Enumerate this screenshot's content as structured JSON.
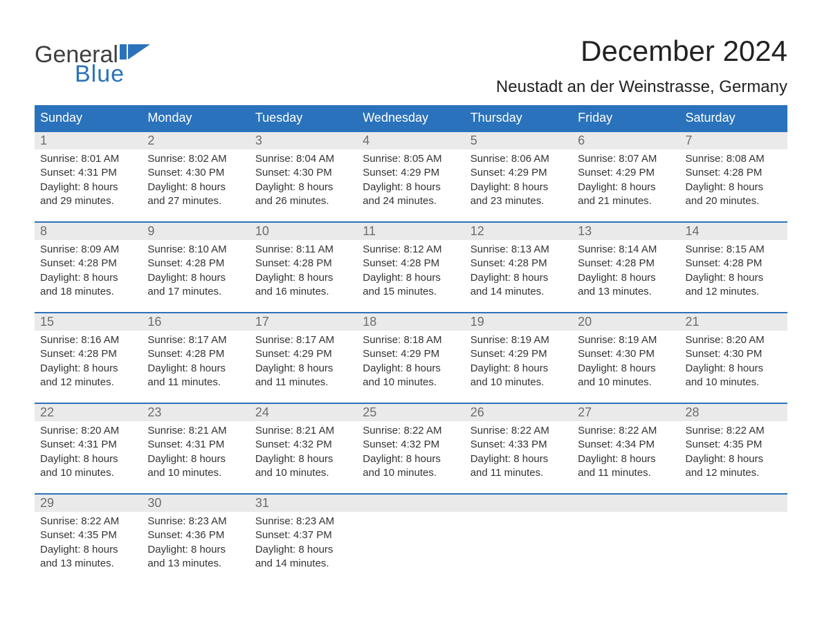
{
  "logo": {
    "text1": "General",
    "text2": "Blue"
  },
  "title": "December 2024",
  "location": "Neustadt an der Weinstrasse, Germany",
  "colors": {
    "header_bg": "#2a72bb",
    "header_text": "#ffffff",
    "daynum_bg": "#eaeaea",
    "daynum_text": "#6d6d6d",
    "body_text": "#333333",
    "week_border": "#2a72bb",
    "logo_gray": "#3f3f3f",
    "logo_blue": "#2a72bb",
    "background": "#ffffff"
  },
  "weekdays": [
    "Sunday",
    "Monday",
    "Tuesday",
    "Wednesday",
    "Thursday",
    "Friday",
    "Saturday"
  ],
  "weeks": [
    [
      {
        "n": "1",
        "sunrise": "8:01 AM",
        "sunset": "4:31 PM",
        "daylight": "8 hours and 29 minutes."
      },
      {
        "n": "2",
        "sunrise": "8:02 AM",
        "sunset": "4:30 PM",
        "daylight": "8 hours and 27 minutes."
      },
      {
        "n": "3",
        "sunrise": "8:04 AM",
        "sunset": "4:30 PM",
        "daylight": "8 hours and 26 minutes."
      },
      {
        "n": "4",
        "sunrise": "8:05 AM",
        "sunset": "4:29 PM",
        "daylight": "8 hours and 24 minutes."
      },
      {
        "n": "5",
        "sunrise": "8:06 AM",
        "sunset": "4:29 PM",
        "daylight": "8 hours and 23 minutes."
      },
      {
        "n": "6",
        "sunrise": "8:07 AM",
        "sunset": "4:29 PM",
        "daylight": "8 hours and 21 minutes."
      },
      {
        "n": "7",
        "sunrise": "8:08 AM",
        "sunset": "4:28 PM",
        "daylight": "8 hours and 20 minutes."
      }
    ],
    [
      {
        "n": "8",
        "sunrise": "8:09 AM",
        "sunset": "4:28 PM",
        "daylight": "8 hours and 18 minutes."
      },
      {
        "n": "9",
        "sunrise": "8:10 AM",
        "sunset": "4:28 PM",
        "daylight": "8 hours and 17 minutes."
      },
      {
        "n": "10",
        "sunrise": "8:11 AM",
        "sunset": "4:28 PM",
        "daylight": "8 hours and 16 minutes."
      },
      {
        "n": "11",
        "sunrise": "8:12 AM",
        "sunset": "4:28 PM",
        "daylight": "8 hours and 15 minutes."
      },
      {
        "n": "12",
        "sunrise": "8:13 AM",
        "sunset": "4:28 PM",
        "daylight": "8 hours and 14 minutes."
      },
      {
        "n": "13",
        "sunrise": "8:14 AM",
        "sunset": "4:28 PM",
        "daylight": "8 hours and 13 minutes."
      },
      {
        "n": "14",
        "sunrise": "8:15 AM",
        "sunset": "4:28 PM",
        "daylight": "8 hours and 12 minutes."
      }
    ],
    [
      {
        "n": "15",
        "sunrise": "8:16 AM",
        "sunset": "4:28 PM",
        "daylight": "8 hours and 12 minutes."
      },
      {
        "n": "16",
        "sunrise": "8:17 AM",
        "sunset": "4:28 PM",
        "daylight": "8 hours and 11 minutes."
      },
      {
        "n": "17",
        "sunrise": "8:17 AM",
        "sunset": "4:29 PM",
        "daylight": "8 hours and 11 minutes."
      },
      {
        "n": "18",
        "sunrise": "8:18 AM",
        "sunset": "4:29 PM",
        "daylight": "8 hours and 10 minutes."
      },
      {
        "n": "19",
        "sunrise": "8:19 AM",
        "sunset": "4:29 PM",
        "daylight": "8 hours and 10 minutes."
      },
      {
        "n": "20",
        "sunrise": "8:19 AM",
        "sunset": "4:30 PM",
        "daylight": "8 hours and 10 minutes."
      },
      {
        "n": "21",
        "sunrise": "8:20 AM",
        "sunset": "4:30 PM",
        "daylight": "8 hours and 10 minutes."
      }
    ],
    [
      {
        "n": "22",
        "sunrise": "8:20 AM",
        "sunset": "4:31 PM",
        "daylight": "8 hours and 10 minutes."
      },
      {
        "n": "23",
        "sunrise": "8:21 AM",
        "sunset": "4:31 PM",
        "daylight": "8 hours and 10 minutes."
      },
      {
        "n": "24",
        "sunrise": "8:21 AM",
        "sunset": "4:32 PM",
        "daylight": "8 hours and 10 minutes."
      },
      {
        "n": "25",
        "sunrise": "8:22 AM",
        "sunset": "4:32 PM",
        "daylight": "8 hours and 10 minutes."
      },
      {
        "n": "26",
        "sunrise": "8:22 AM",
        "sunset": "4:33 PM",
        "daylight": "8 hours and 11 minutes."
      },
      {
        "n": "27",
        "sunrise": "8:22 AM",
        "sunset": "4:34 PM",
        "daylight": "8 hours and 11 minutes."
      },
      {
        "n": "28",
        "sunrise": "8:22 AM",
        "sunset": "4:35 PM",
        "daylight": "8 hours and 12 minutes."
      }
    ],
    [
      {
        "n": "29",
        "sunrise": "8:22 AM",
        "sunset": "4:35 PM",
        "daylight": "8 hours and 13 minutes."
      },
      {
        "n": "30",
        "sunrise": "8:23 AM",
        "sunset": "4:36 PM",
        "daylight": "8 hours and 13 minutes."
      },
      {
        "n": "31",
        "sunrise": "8:23 AM",
        "sunset": "4:37 PM",
        "daylight": "8 hours and 14 minutes."
      },
      null,
      null,
      null,
      null
    ]
  ],
  "labels": {
    "sunrise": "Sunrise:",
    "sunset": "Sunset:",
    "daylight": "Daylight:"
  }
}
